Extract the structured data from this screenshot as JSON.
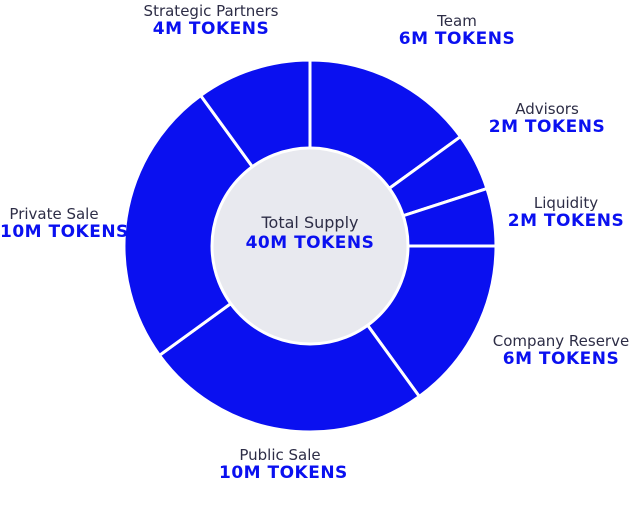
{
  "chart_data": {
    "type": "pie",
    "categories": [
      "Team",
      "Advisors",
      "Liquidity",
      "Company Reserve",
      "Public Sale",
      "Private Sale",
      "Strategic Partners"
    ],
    "values": [
      6,
      2,
      2,
      6,
      10,
      10,
      4
    ],
    "value_labels": [
      "6M TOKENS",
      "2M TOKENS",
      "2M TOKENS",
      "6M TOKENS",
      "10M TOKENS",
      "10M TOKENS",
      "4M TOKENS"
    ],
    "center": {
      "title": "Total Supply",
      "value_label": "40M TOKENS"
    },
    "donut": true,
    "start": "top, clockwise"
  },
  "colors": {
    "slice": "#0a10f0",
    "slice_border": "#ffffff",
    "center_fill": "#e8e9ef",
    "name_text": "#2d2d46",
    "value_text": "#0a10f0"
  }
}
